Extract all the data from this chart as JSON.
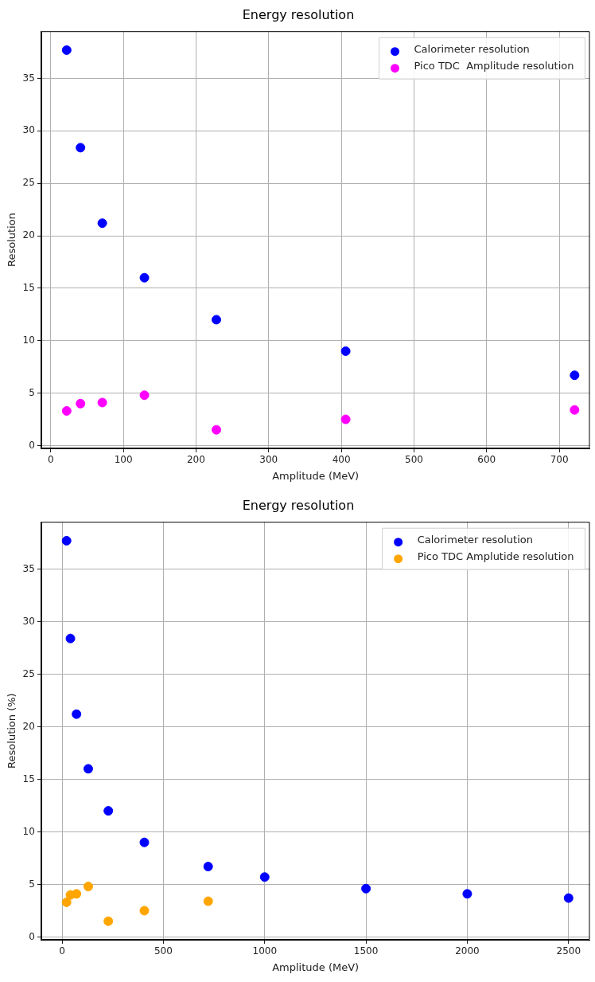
{
  "chart_data": [
    {
      "type": "scatter",
      "title": "Energy resolution",
      "xlabel": "Amplitude (MeV)",
      "ylabel": "Resolution",
      "xlim": [
        -13,
        742
      ],
      "ylim": [
        -0.27,
        39.5
      ],
      "xticks": [
        0,
        100,
        200,
        300,
        400,
        500,
        600,
        700
      ],
      "yticks": [
        0,
        5,
        10,
        15,
        20,
        25,
        30,
        35
      ],
      "grid": true,
      "legend": "top right",
      "marker": "circle",
      "series": [
        {
          "name": "Calorimeter resolution",
          "color": "#0000ff",
          "x": [
            22,
            41,
            71,
            129,
            228,
            406,
            721
          ],
          "values": [
            37.7,
            28.4,
            21.2,
            16.0,
            12.0,
            9.0,
            6.7
          ]
        },
        {
          "name": "Pico TDC  Amplitude resolution",
          "color": "#ff00ff",
          "x": [
            22,
            41,
            71,
            129,
            228,
            406,
            721
          ],
          "values": [
            3.3,
            4.0,
            4.1,
            4.8,
            1.5,
            2.5,
            3.4
          ]
        }
      ]
    },
    {
      "type": "scatter",
      "title": "Energy resolution",
      "xlabel": "Amplitude (MeV)",
      "ylabel": "Resolution (%)",
      "xlim": [
        -103,
        2605
      ],
      "ylim": [
        -0.27,
        39.5
      ],
      "xticks": [
        0,
        500,
        1000,
        1500,
        2000,
        2500
      ],
      "yticks": [
        0,
        5,
        10,
        15,
        20,
        25,
        30,
        35
      ],
      "grid": true,
      "legend": "top right",
      "marker": "circle",
      "series": [
        {
          "name": "Calorimeter resolution",
          "color": "#0000ff",
          "x": [
            22,
            41,
            71,
            129,
            228,
            406,
            721,
            1000,
            1500,
            2000,
            2500
          ],
          "values": [
            37.7,
            28.4,
            21.2,
            16.0,
            12.0,
            9.0,
            6.7,
            5.7,
            4.6,
            4.1,
            3.7
          ]
        },
        {
          "name": "Pico TDC Amplutide resolution",
          "color": "#ffa500",
          "x": [
            22,
            41,
            71,
            129,
            228,
            406,
            721
          ],
          "values": [
            3.3,
            4.0,
            4.1,
            4.8,
            1.5,
            2.5,
            3.4
          ]
        }
      ]
    }
  ]
}
